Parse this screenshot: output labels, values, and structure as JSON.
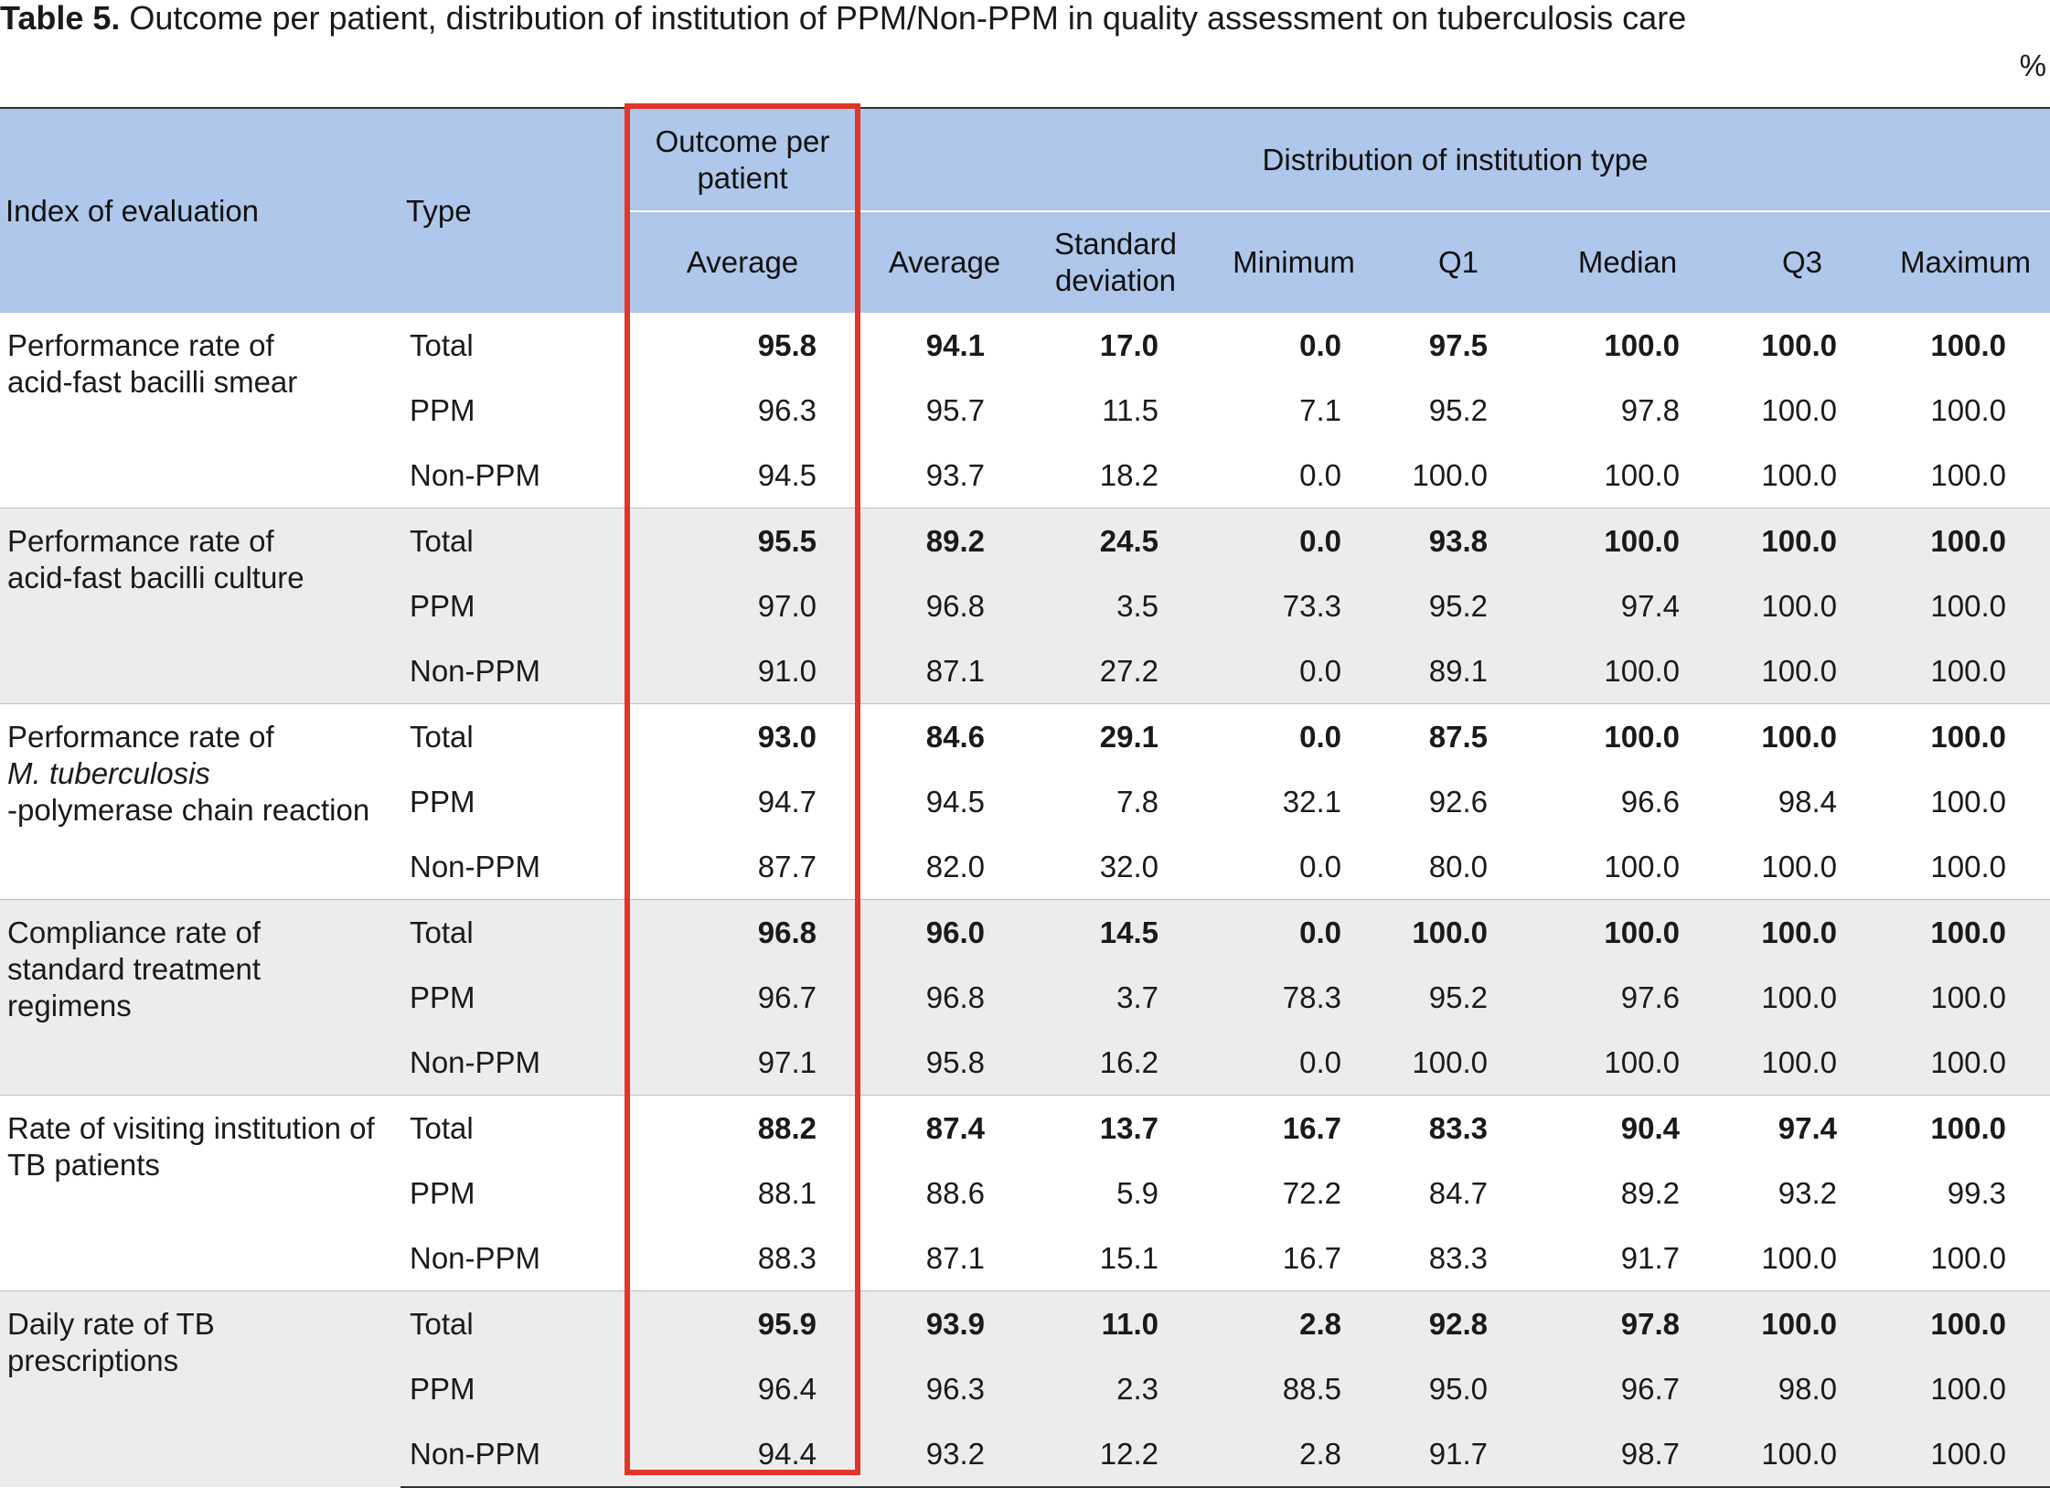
{
  "caption": {
    "label": "Table 5.",
    "text": "Outcome per patient, distribution of institution of PPM/Non-PPM in quality assessment on tuberculosis care"
  },
  "unit": "%",
  "header": {
    "index": "Index of evaluation",
    "type": "Type",
    "outcome_group": "Outcome per patient",
    "distribution_group": "Distribution of institution type",
    "outcome_average": "Average",
    "columns": [
      "Average",
      "Standard deviation",
      "Minimum",
      "Q1",
      "Median",
      "Q3",
      "Maximum"
    ]
  },
  "highlight_color": "#e03528",
  "header_color": "#aec7ea",
  "groups": [
    {
      "index_lines": [
        "Performance rate of",
        "acid-fast bacilli smear"
      ],
      "rows": [
        {
          "type": "Total",
          "values": [
            "95.8",
            "94.1",
            "17.0",
            "0.0",
            "97.5",
            "100.0",
            "100.0",
            "100.0"
          ]
        },
        {
          "type": "PPM",
          "values": [
            "96.3",
            "95.7",
            "11.5",
            "7.1",
            "95.2",
            "97.8",
            "100.0",
            "100.0"
          ]
        },
        {
          "type": "Non-PPM",
          "values": [
            "94.5",
            "93.7",
            "18.2",
            "0.0",
            "100.0",
            "100.0",
            "100.0",
            "100.0"
          ]
        }
      ]
    },
    {
      "index_lines": [
        "Performance rate of",
        "acid-fast bacilli culture"
      ],
      "rows": [
        {
          "type": "Total",
          "values": [
            "95.5",
            "89.2",
            "24.5",
            "0.0",
            "93.8",
            "100.0",
            "100.0",
            "100.0"
          ]
        },
        {
          "type": "PPM",
          "values": [
            "97.0",
            "96.8",
            "3.5",
            "73.3",
            "95.2",
            "97.4",
            "100.0",
            "100.0"
          ]
        },
        {
          "type": "Non-PPM",
          "values": [
            "91.0",
            "87.1",
            "27.2",
            "0.0",
            "89.1",
            "100.0",
            "100.0",
            "100.0"
          ]
        }
      ]
    },
    {
      "index_lines": [
        "Performance rate of",
        "M. tuberculosis",
        "-polymerase chain reaction"
      ],
      "rows": [
        {
          "type": "Total",
          "values": [
            "93.0",
            "84.6",
            "29.1",
            "0.0",
            "87.5",
            "100.0",
            "100.0",
            "100.0"
          ]
        },
        {
          "type": "PPM",
          "values": [
            "94.7",
            "94.5",
            "7.8",
            "32.1",
            "92.6",
            "96.6",
            "98.4",
            "100.0"
          ]
        },
        {
          "type": "Non-PPM",
          "values": [
            "87.7",
            "82.0",
            "32.0",
            "0.0",
            "80.0",
            "100.0",
            "100.0",
            "100.0"
          ]
        }
      ]
    },
    {
      "index_lines": [
        "Compliance rate of",
        "standard treatment",
        "regimens"
      ],
      "rows": [
        {
          "type": "Total",
          "values": [
            "96.8",
            "96.0",
            "14.5",
            "0.0",
            "100.0",
            "100.0",
            "100.0",
            "100.0"
          ]
        },
        {
          "type": "PPM",
          "values": [
            "96.7",
            "96.8",
            "3.7",
            "78.3",
            "95.2",
            "97.6",
            "100.0",
            "100.0"
          ]
        },
        {
          "type": "Non-PPM",
          "values": [
            "97.1",
            "95.8",
            "16.2",
            "0.0",
            "100.0",
            "100.0",
            "100.0",
            "100.0"
          ]
        }
      ]
    },
    {
      "index_lines": [
        "Rate of visiting institution of",
        "TB patients"
      ],
      "rows": [
        {
          "type": "Total",
          "values": [
            "88.2",
            "87.4",
            "13.7",
            "16.7",
            "83.3",
            "90.4",
            "97.4",
            "100.0"
          ]
        },
        {
          "type": "PPM",
          "values": [
            "88.1",
            "88.6",
            "5.9",
            "72.2",
            "84.7",
            "89.2",
            "93.2",
            "99.3"
          ]
        },
        {
          "type": "Non-PPM",
          "values": [
            "88.3",
            "87.1",
            "15.1",
            "16.7",
            "83.3",
            "91.7",
            "100.0",
            "100.0"
          ]
        }
      ]
    },
    {
      "index_lines": [
        "Daily rate of TB",
        "prescriptions"
      ],
      "rows": [
        {
          "type": "Total",
          "values": [
            "95.9",
            "93.9",
            "11.0",
            "2.8",
            "92.8",
            "97.8",
            "100.0",
            "100.0"
          ]
        },
        {
          "type": "PPM",
          "values": [
            "96.4",
            "96.3",
            "2.3",
            "88.5",
            "95.0",
            "96.7",
            "98.0",
            "100.0"
          ]
        },
        {
          "type": "Non-PPM",
          "values": [
            "94.4",
            "93.2",
            "12.2",
            "2.8",
            "91.7",
            "98.7",
            "100.0",
            "100.0"
          ]
        }
      ]
    }
  ]
}
